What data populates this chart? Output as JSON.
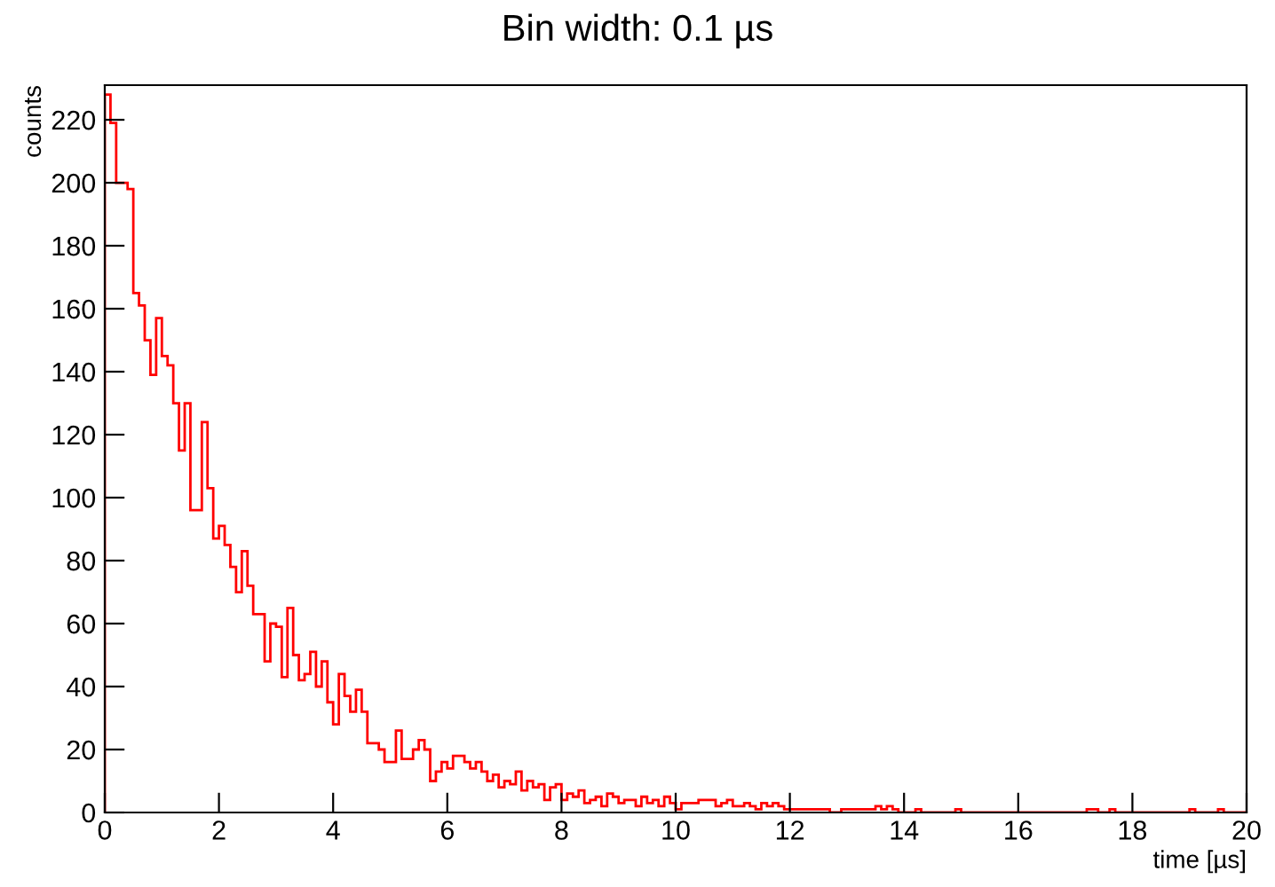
{
  "chart_data": {
    "type": "histogram",
    "title": "Bin width: 0.1 µs",
    "xlabel": "time [µs]",
    "ylabel": "counts",
    "bins": [
      0,
      0.1,
      0.2,
      0.3,
      0.4,
      0.5,
      0.6,
      0.7,
      0.8,
      0.9,
      1,
      1.1,
      1.2,
      1.3,
      1.4,
      1.5,
      1.6,
      1.7,
      1.8,
      1.9,
      2,
      2.1,
      2.2,
      2.3,
      2.4,
      2.5,
      2.6,
      2.7,
      2.8,
      2.9,
      3,
      3.1,
      3.2,
      3.3,
      3.4,
      3.5,
      3.6,
      3.7,
      3.8,
      3.9,
      4,
      4.1,
      4.2,
      4.3,
      4.4,
      4.5,
      4.6,
      4.7,
      4.8,
      4.9,
      5,
      5.1,
      5.2,
      5.3,
      5.4,
      5.5,
      5.6,
      5.7,
      5.8,
      5.9,
      6,
      6.1,
      6.2,
      6.3,
      6.4,
      6.5,
      6.6,
      6.7,
      6.8,
      6.9,
      7,
      7.1,
      7.2,
      7.3,
      7.4,
      7.5,
      7.6,
      7.7,
      7.8,
      7.9,
      8,
      8.1,
      8.2,
      8.3,
      8.4,
      8.5,
      8.6,
      8.7,
      8.8,
      8.9,
      9,
      9.1,
      9.2,
      9.3,
      9.4,
      9.5,
      9.6,
      9.7,
      9.8,
      9.9,
      10,
      10.1,
      10.2,
      10.3,
      10.4,
      10.5,
      10.6,
      10.7,
      10.8,
      10.9,
      11,
      11.1,
      11.2,
      11.3,
      11.4,
      11.5,
      11.6,
      11.7,
      11.8,
      11.9,
      12,
      12.1,
      12.2,
      12.3,
      12.4,
      12.5,
      12.6,
      12.7,
      12.8,
      12.9,
      13,
      13.1,
      13.2,
      13.3,
      13.4,
      13.5,
      13.6,
      13.7,
      13.8,
      13.9,
      14,
      14.1,
      14.2,
      14.3,
      14.4,
      14.5,
      14.6,
      14.7,
      14.8,
      14.9,
      15,
      15.1,
      15.2,
      15.3,
      15.4,
      15.5,
      15.6,
      15.7,
      15.8,
      15.9,
      16,
      16.1,
      16.2,
      16.3,
      16.4,
      16.5,
      16.6,
      16.7,
      16.8,
      16.9,
      17,
      17.1,
      17.2,
      17.3,
      17.4,
      17.5,
      17.6,
      17.7,
      17.8,
      17.9,
      18,
      18.1,
      18.2,
      18.3,
      18.4,
      18.5,
      18.6,
      18.7,
      18.8,
      18.9,
      19,
      19.1,
      19.2,
      19.3,
      19.4,
      19.5,
      19.6,
      19.7,
      19.8,
      19.9,
      20
    ],
    "values": [
      228,
      219,
      200,
      200,
      198,
      165,
      161,
      150,
      139,
      157,
      145,
      142,
      130,
      115,
      130,
      96,
      96,
      124,
      103,
      87,
      91,
      85,
      78,
      70,
      83,
      72,
      63,
      63,
      48,
      60,
      59,
      43,
      65,
      50,
      42,
      44,
      51,
      40,
      48,
      35,
      28,
      44,
      37,
      32,
      39,
      32,
      22,
      22,
      20,
      16,
      16,
      26,
      17,
      17,
      20,
      23,
      20,
      10,
      13,
      16,
      14,
      18,
      18,
      16,
      14,
      16,
      13,
      10,
      12,
      8,
      10,
      9,
      13,
      7,
      10,
      8,
      9,
      4,
      8,
      9,
      4,
      6,
      5,
      7,
      3,
      4,
      5,
      2,
      6,
      5,
      3,
      4,
      4,
      2,
      5,
      3,
      4,
      2,
      5,
      3,
      1,
      3,
      3,
      3,
      4,
      4,
      4,
      2,
      3,
      4,
      2,
      2,
      3,
      2,
      1,
      3,
      2,
      3,
      2,
      1,
      1,
      1,
      1,
      1,
      1,
      1,
      1,
      0,
      0,
      1,
      1,
      1,
      1,
      1,
      1,
      2,
      1,
      2,
      1,
      0,
      0,
      0,
      1,
      0,
      0,
      0,
      0,
      0,
      0,
      1,
      0,
      0,
      0,
      0,
      0,
      0,
      0,
      0,
      0,
      0,
      0,
      0,
      0,
      0,
      0,
      0,
      0,
      0,
      0,
      0,
      0,
      0,
      1,
      1,
      0,
      0,
      1,
      0,
      0,
      0,
      0,
      0,
      0,
      0,
      0,
      0,
      0,
      0,
      0,
      0,
      1,
      0,
      0,
      0,
      0,
      1,
      0,
      0,
      0,
      0
    ],
    "color": "#ff0000",
    "xlim": [
      0,
      20
    ],
    "xticks": [
      0,
      2,
      4,
      6,
      8,
      10,
      12,
      14,
      16,
      18,
      20
    ],
    "ylim": [
      0,
      231
    ],
    "yticks": [
      0,
      20,
      40,
      60,
      80,
      100,
      120,
      140,
      160,
      180,
      200,
      220
    ],
    "grid": false,
    "legend": false
  }
}
